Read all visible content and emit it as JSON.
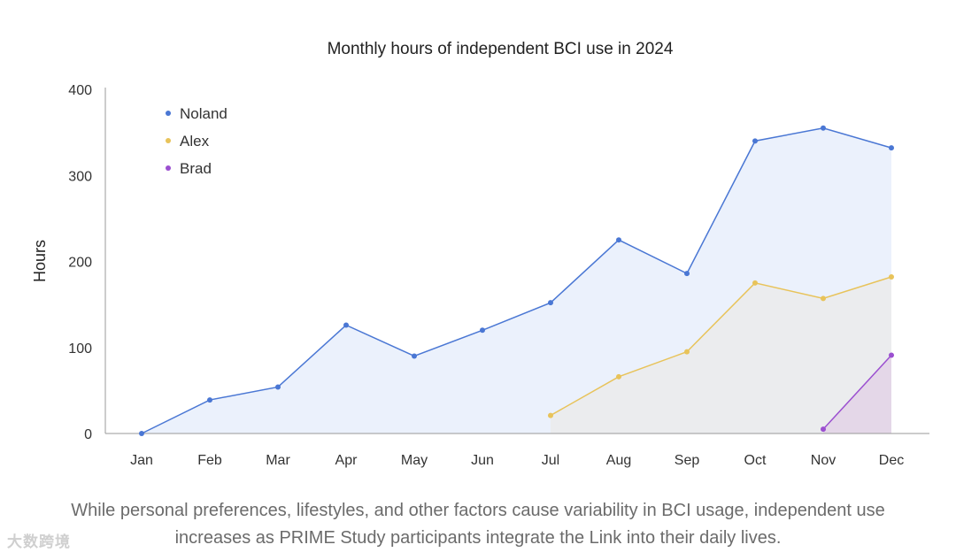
{
  "chart_data": {
    "type": "area",
    "title": "Monthly hours of independent BCI use in 2024",
    "xlabel": "",
    "ylabel": "Hours",
    "ylim": [
      0,
      400
    ],
    "yticks": [
      0,
      100,
      200,
      300,
      400
    ],
    "grid": false,
    "legend_position": "top-left",
    "categories": [
      "Jan",
      "Feb",
      "Mar",
      "Apr",
      "May",
      "Jun",
      "Jul",
      "Aug",
      "Sep",
      "Oct",
      "Nov",
      "Dec"
    ],
    "series": [
      {
        "name": "Noland",
        "color": "#4a77d4",
        "fill": "#e8eefc",
        "values": [
          0,
          39,
          54,
          126,
          90,
          120,
          152,
          225,
          186,
          340,
          355,
          332
        ]
      },
      {
        "name": "Alex",
        "color": "#e8c35a",
        "fill": "#ebebeb",
        "values": [
          null,
          null,
          null,
          null,
          null,
          null,
          21,
          66,
          95,
          175,
          157,
          182
        ]
      },
      {
        "name": "Brad",
        "color": "#9b4fd0",
        "fill": "#e3d3e6",
        "values": [
          null,
          null,
          null,
          null,
          null,
          null,
          null,
          null,
          null,
          null,
          5,
          91
        ]
      }
    ]
  },
  "caption": {
    "line1": "While personal preferences, lifestyles, and other factors cause variability in BCI usage, independent use",
    "line2": "increases as PRIME Study participants integrate the Link into their daily lives."
  },
  "watermark": "大数跨境"
}
